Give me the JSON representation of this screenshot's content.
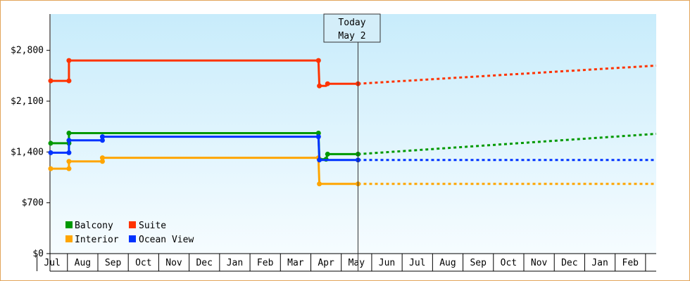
{
  "chart_data": {
    "type": "line",
    "step": true,
    "y_ticks": [
      "$0",
      "$700",
      "$1,400",
      "$2,100",
      "$2,800"
    ],
    "y_tick_values": [
      0,
      700,
      1400,
      2100,
      2800
    ],
    "ylim": [
      0,
      3300
    ],
    "x_tick_labels": [
      "Jul",
      "Aug",
      "Sep",
      "Oct",
      "Nov",
      "Dec",
      "Jan",
      "Feb",
      "Mar",
      "Apr",
      "May",
      "Jun",
      "Jul",
      "Aug",
      "Sep",
      "Oct",
      "Nov",
      "Dec",
      "Jan",
      "Feb"
    ],
    "xlim_months": [
      -0.05,
      19.85
    ],
    "today": {
      "line1": "Today",
      "line2": "May 2",
      "x": 10.05
    },
    "grid": false,
    "legend": {
      "placement": "bottom-left"
    },
    "series": [
      {
        "name": "Balcony",
        "color": "#009900",
        "points": [
          [
            -0.05,
            1520
          ],
          [
            0.55,
            1520
          ],
          [
            0.55,
            1660
          ],
          [
            8.75,
            1660
          ],
          [
            8.78,
            1300
          ],
          [
            9.0,
            1300
          ],
          [
            9.05,
            1370
          ],
          [
            10.05,
            1370
          ]
        ],
        "markers": [
          [
            -0.05,
            1520
          ],
          [
            0.55,
            1520
          ],
          [
            0.55,
            1660
          ],
          [
            8.75,
            1660
          ],
          [
            8.78,
            1300
          ],
          [
            9.0,
            1300
          ],
          [
            9.05,
            1370
          ],
          [
            10.05,
            1370
          ]
        ],
        "projection": [
          [
            10.05,
            1370
          ],
          [
            19.85,
            1650
          ]
        ]
      },
      {
        "name": "Suite",
        "color": "#ff3300",
        "points": [
          [
            -0.05,
            2380
          ],
          [
            0.55,
            2380
          ],
          [
            0.55,
            2660
          ],
          [
            8.75,
            2660
          ],
          [
            8.78,
            2310
          ],
          [
            9.0,
            2310
          ],
          [
            9.05,
            2340
          ],
          [
            10.05,
            2340
          ]
        ],
        "markers": [
          [
            -0.05,
            2380
          ],
          [
            0.55,
            2380
          ],
          [
            0.55,
            2660
          ],
          [
            8.75,
            2660
          ],
          [
            8.78,
            2310
          ],
          [
            9.05,
            2340
          ],
          [
            10.05,
            2340
          ]
        ],
        "projection": [
          [
            10.05,
            2340
          ],
          [
            19.85,
            2590
          ]
        ]
      },
      {
        "name": "Interior",
        "color": "#ffa500",
        "points": [
          [
            -0.05,
            1170
          ],
          [
            0.55,
            1170
          ],
          [
            0.55,
            1270
          ],
          [
            1.65,
            1270
          ],
          [
            1.65,
            1320
          ],
          [
            8.75,
            1320
          ],
          [
            8.78,
            960
          ],
          [
            10.05,
            960
          ]
        ],
        "markers": [
          [
            -0.05,
            1170
          ],
          [
            0.55,
            1170
          ],
          [
            0.55,
            1270
          ],
          [
            1.65,
            1270
          ],
          [
            1.65,
            1320
          ],
          [
            8.75,
            1320
          ],
          [
            8.78,
            960
          ],
          [
            10.05,
            960
          ]
        ],
        "projection": [
          [
            10.05,
            960
          ],
          [
            19.85,
            960
          ]
        ]
      },
      {
        "name": "Ocean View",
        "color": "#0033ff",
        "points": [
          [
            -0.05,
            1390
          ],
          [
            0.55,
            1390
          ],
          [
            0.55,
            1560
          ],
          [
            1.65,
            1560
          ],
          [
            1.65,
            1610
          ],
          [
            8.75,
            1610
          ],
          [
            8.78,
            1290
          ],
          [
            10.05,
            1290
          ]
        ],
        "markers": [
          [
            -0.05,
            1390
          ],
          [
            0.55,
            1390
          ],
          [
            0.55,
            1560
          ],
          [
            1.65,
            1560
          ],
          [
            1.65,
            1610
          ],
          [
            8.75,
            1610
          ],
          [
            8.78,
            1290
          ],
          [
            10.05,
            1290
          ]
        ],
        "projection": [
          [
            10.05,
            1290
          ],
          [
            19.85,
            1290
          ]
        ]
      }
    ]
  },
  "colors": {
    "plot_top": "#c8ecfb",
    "plot_bottom": "#f6fcff",
    "frame_border": "#e2a55a"
  }
}
